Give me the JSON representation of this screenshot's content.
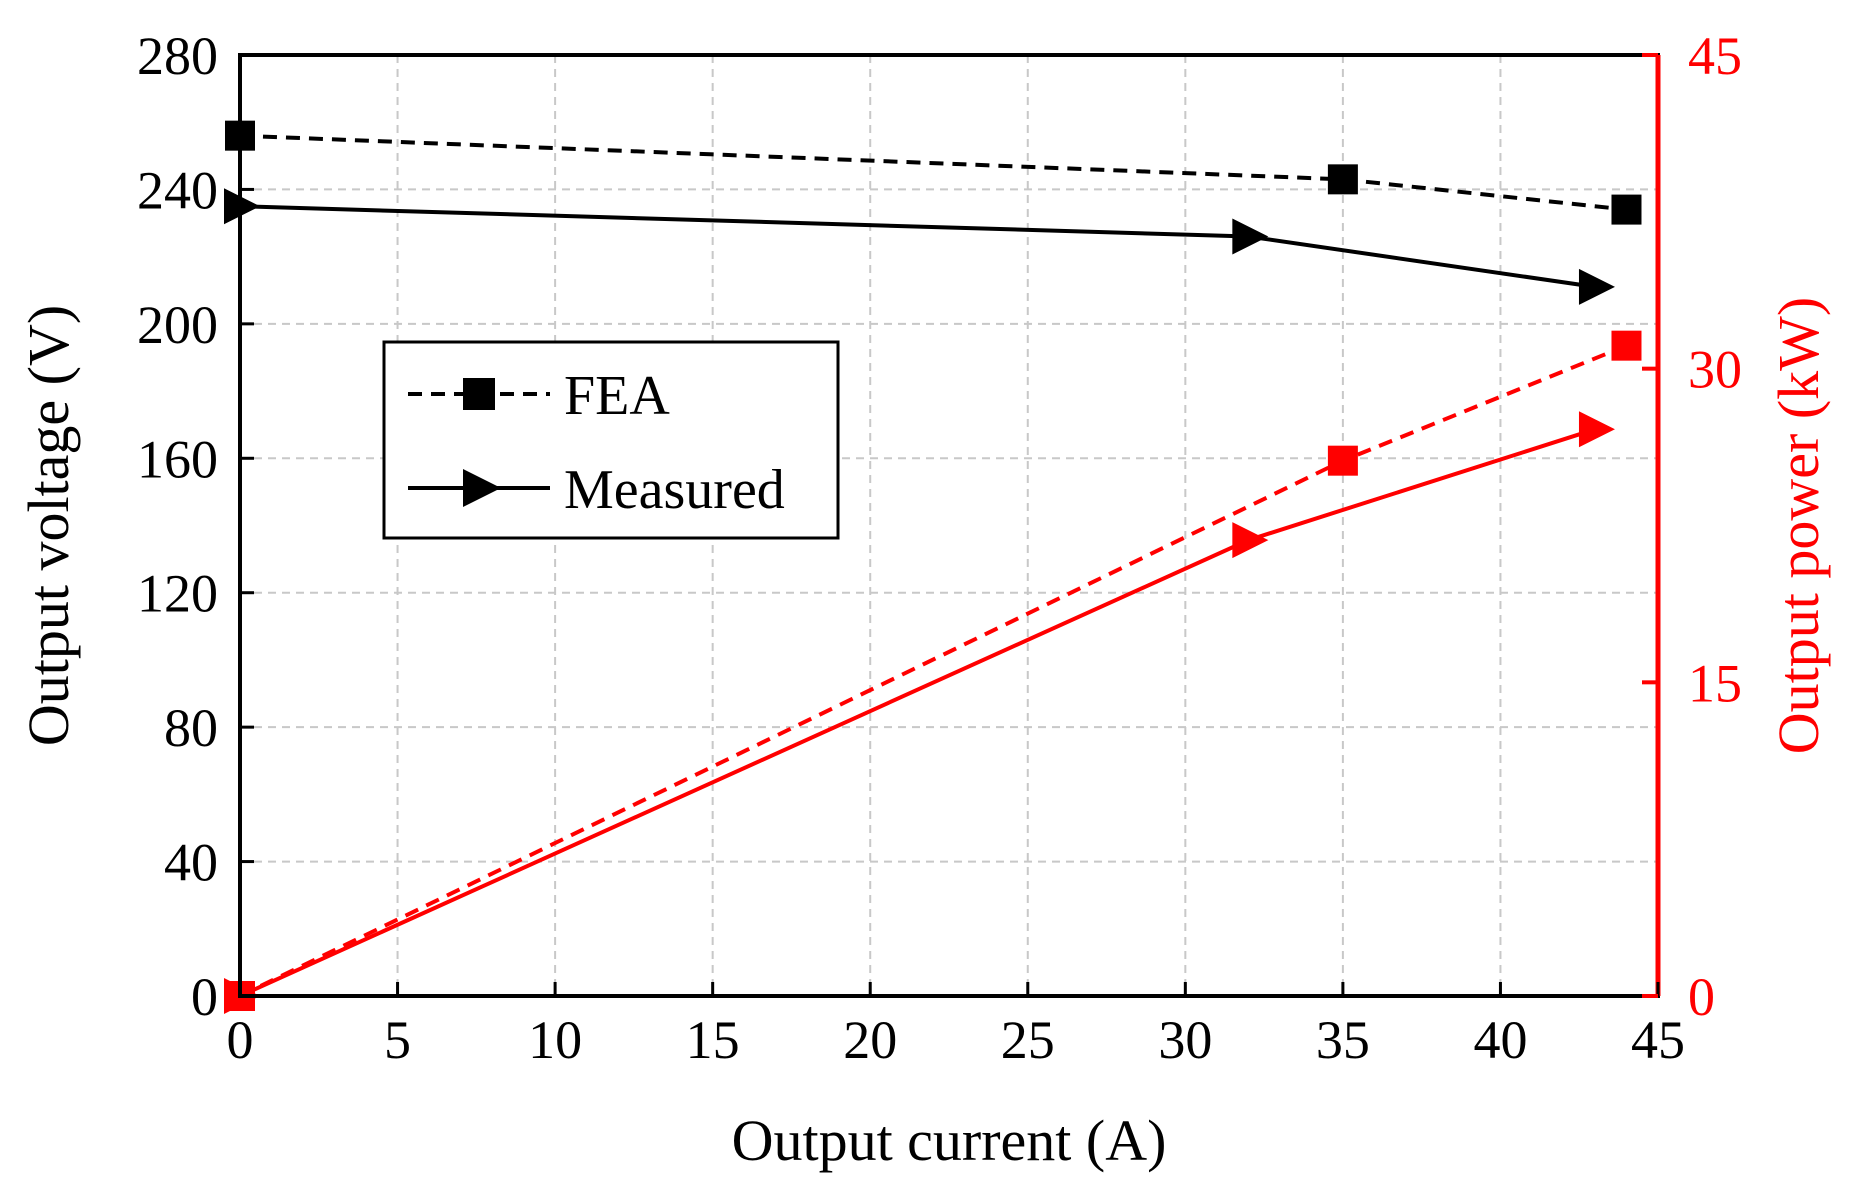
{
  "chart_data": {
    "type": "line",
    "xlabel": "Output current (A)",
    "ylabel_left": "Output voltage (V)",
    "ylabel_right": "Output power (kW)",
    "xlim": [
      0,
      45
    ],
    "ylim_left": [
      0,
      280
    ],
    "ylim_right": [
      0,
      45
    ],
    "xticks": [
      0,
      5,
      10,
      15,
      20,
      25,
      30,
      35,
      40,
      45
    ],
    "yticks_left": [
      0,
      40,
      80,
      120,
      160,
      200,
      240,
      280
    ],
    "yticks_right": [
      0,
      15,
      30,
      45
    ],
    "grid": true,
    "legend_position": "upper-left-middle",
    "colors": {
      "voltage": "#000000",
      "power": "#ff0000"
    },
    "series": [
      {
        "name": "FEA",
        "quantity": "voltage",
        "axis": "left",
        "style": "dashed",
        "marker": "square",
        "x": [
          0,
          35,
          44
        ],
        "y": [
          256,
          243,
          234
        ]
      },
      {
        "name": "Measured",
        "quantity": "voltage",
        "axis": "left",
        "style": "solid",
        "marker": "triangle-right",
        "x": [
          0,
          32,
          43
        ],
        "y": [
          235,
          226,
          211
        ]
      },
      {
        "name": "FEA",
        "quantity": "power",
        "axis": "right",
        "style": "dashed",
        "marker": "square",
        "x": [
          0,
          35,
          44
        ],
        "y": [
          0,
          25.6,
          31.1
        ]
      },
      {
        "name": "Measured",
        "quantity": "power",
        "axis": "right",
        "style": "solid",
        "marker": "triangle-right",
        "x": [
          0,
          32,
          43
        ],
        "y": [
          0,
          21.8,
          27.1
        ]
      }
    ],
    "legend": [
      {
        "label": "FEA",
        "style": "dashed",
        "marker": "square"
      },
      {
        "label": "Measured",
        "style": "solid",
        "marker": "triangle-right"
      }
    ]
  }
}
